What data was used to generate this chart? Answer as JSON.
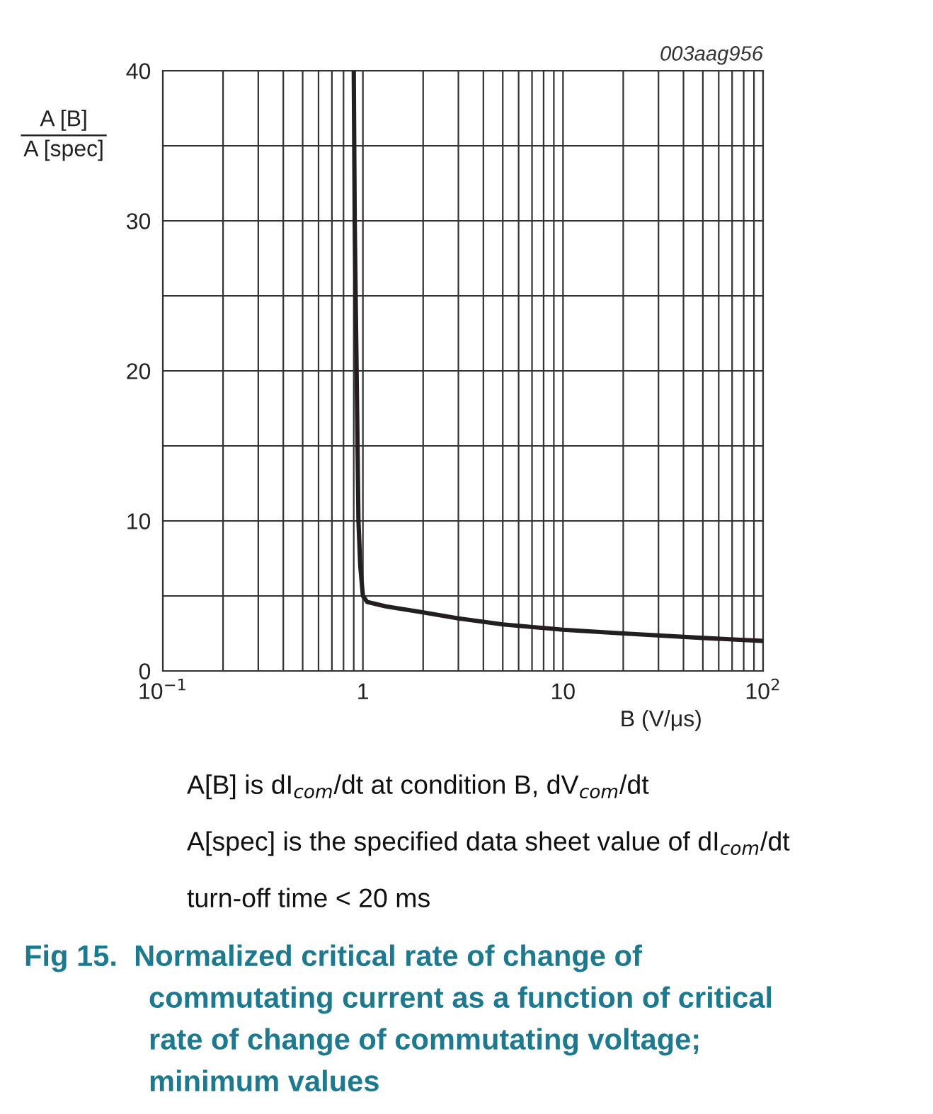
{
  "chart_data": {
    "type": "line",
    "title": "Fig 15.  Normalized critical rate of change of\ncommutating current as a function of critical\nrate of change of commutating voltage;\nminimum values",
    "xlabel": "B (V/μs)",
    "ylabel": "A [B]\nA [spec]",
    "annotations": [
      "003aag956",
      "A[B] is dI$_{com}$/dt at condition B, dV$_{com}$/dt",
      "A[spec] is the specified data sheet value of dI$_{com}$/dt",
      "turn-off time < 20 ms"
    ],
    "log": "x",
    "xlim": [
      0.1,
      100
    ],
    "ylim": [
      0,
      40
    ],
    "xticks": [
      {
        "value": 0.1,
        "label": "10$^{−1}$"
      },
      {
        "value": 0.2,
        "label": null
      },
      {
        "value": 0.3,
        "label": null
      },
      {
        "value": 0.4,
        "label": null
      },
      {
        "value": 0.5,
        "label": null
      },
      {
        "value": 0.6,
        "label": null
      },
      {
        "value": 0.7,
        "label": null
      },
      {
        "value": 0.8,
        "label": null
      },
      {
        "value": 0.9,
        "label": null
      },
      1,
      {
        "value": 2,
        "label": null
      },
      {
        "value": 3,
        "label": null
      },
      {
        "value": 4,
        "label": null
      },
      {
        "value": 5,
        "label": null
      },
      {
        "value": 6,
        "label": null
      },
      {
        "value": 7,
        "label": null
      },
      {
        "value": 8,
        "label": null
      },
      {
        "value": 9,
        "label": null
      },
      10,
      {
        "value": 20,
        "label": null
      },
      {
        "value": 30,
        "label": null
      },
      {
        "value": 40,
        "label": null
      },
      {
        "value": 50,
        "label": null
      },
      {
        "value": 60,
        "label": null
      },
      {
        "value": 70,
        "label": null
      },
      {
        "value": 80,
        "label": null
      },
      {
        "value": 90,
        "label": null
      },
      {
        "value": 100,
        "label": "10$^{2}$"
      }
    ],
    "yticks": [
      0,
      {
        "value": 5,
        "label": null
      },
      10,
      {
        "value": 15,
        "label": null
      },
      20,
      {
        "value": 25,
        "label": null
      },
      30,
      {
        "value": 35,
        "label": null
      },
      40
    ],
    "grid": true,
    "marker": "none",
    "line_style": "solid",
    "series": [
      {
        "color": "#231f20",
        "x": [
          0.9,
          0.91,
          0.93,
          0.95,
          0.97,
          1.0,
          1.05,
          1.3,
          2,
          3,
          5,
          10,
          20,
          50,
          100
        ],
        "values": [
          40,
          30,
          20,
          10,
          7,
          5,
          4.6,
          4.3,
          3.9,
          3.5,
          3.1,
          2.75,
          2.5,
          2.2,
          2.0
        ]
      }
    ]
  }
}
